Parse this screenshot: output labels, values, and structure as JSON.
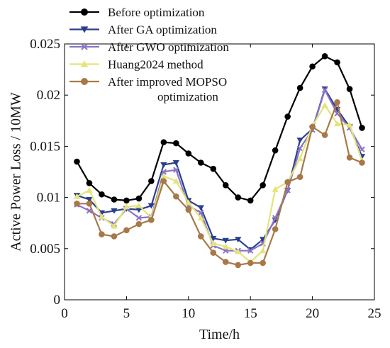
{
  "chart_data": {
    "type": "line",
    "xlabel": "Time/h",
    "ylabel": "Active Power Loss / 10MW",
    "xlim": [
      0,
      25
    ],
    "ylim": [
      0,
      0.025
    ],
    "xticks": [
      0,
      5,
      10,
      15,
      20,
      25
    ],
    "yticks": [
      0,
      0.005,
      0.01,
      0.015,
      0.02,
      0.025
    ],
    "xtick_labels": [
      "0",
      "5",
      "10",
      "15",
      "20",
      "25"
    ],
    "ytick_labels": [
      "0",
      "0.005",
      "0.01",
      "0.015",
      "0.02",
      "0.025"
    ],
    "grid": false,
    "legend_position": "top-left",
    "x": [
      1,
      2,
      3,
      4,
      5,
      6,
      7,
      8,
      9,
      10,
      11,
      12,
      13,
      14,
      15,
      16,
      17,
      18,
      19,
      20,
      21,
      22,
      23,
      24
    ],
    "series": [
      {
        "name": "Before optimization",
        "color": "#000000",
        "marker": "circle",
        "values": [
          0.0135,
          0.0114,
          0.0103,
          0.0098,
          0.0097,
          0.0099,
          0.0116,
          0.0154,
          0.0153,
          0.0143,
          0.0134,
          0.0128,
          0.0112,
          0.01,
          0.0097,
          0.0112,
          0.0146,
          0.0179,
          0.0207,
          0.0228,
          0.0238,
          0.0232,
          0.0206,
          0.0168
        ]
      },
      {
        "name": "After GA optimization",
        "color": "#2a3f8c",
        "marker": "triangle-down",
        "values": [
          0.0102,
          0.0098,
          0.0085,
          0.0087,
          0.0089,
          0.0088,
          0.0092,
          0.0132,
          0.0134,
          0.0097,
          0.009,
          0.006,
          0.0058,
          0.0059,
          0.0049,
          0.0059,
          0.0078,
          0.0107,
          0.0156,
          0.0167,
          0.0206,
          0.0186,
          0.0169,
          0.014
        ]
      },
      {
        "name": "After GWO optimization",
        "color": "#8a74c8",
        "marker": "x",
        "values": [
          0.0093,
          0.0087,
          0.008,
          0.0074,
          0.0089,
          0.008,
          0.0081,
          0.0125,
          0.0127,
          0.0092,
          0.0085,
          0.0053,
          0.0048,
          0.0048,
          0.0048,
          0.0055,
          0.008,
          0.0107,
          0.0148,
          0.0166,
          0.0205,
          0.0182,
          0.0168,
          0.0147
        ]
      },
      {
        "name": "Huang2024 method",
        "color": "#e4e47a",
        "marker": "triangle-up",
        "values": [
          0.0101,
          0.0107,
          0.0081,
          0.0072,
          0.0091,
          0.0092,
          0.008,
          0.0121,
          0.0116,
          0.0095,
          0.008,
          0.0055,
          0.0052,
          0.0047,
          0.0037,
          0.0048,
          0.0108,
          0.0115,
          0.0138,
          0.017,
          0.019,
          0.0172,
          0.0171,
          0.0136
        ]
      },
      {
        "name": "After improved MOPSO optimization",
        "color": "#a87848",
        "marker": "circle",
        "values": [
          0.0094,
          0.0094,
          0.0064,
          0.0062,
          0.0068,
          0.0074,
          0.0078,
          0.0116,
          0.0101,
          0.0088,
          0.0062,
          0.0046,
          0.0037,
          0.0034,
          0.0036,
          0.0036,
          0.0069,
          0.0115,
          0.012,
          0.0169,
          0.0161,
          0.0193,
          0.0139,
          0.0134
        ]
      }
    ]
  }
}
